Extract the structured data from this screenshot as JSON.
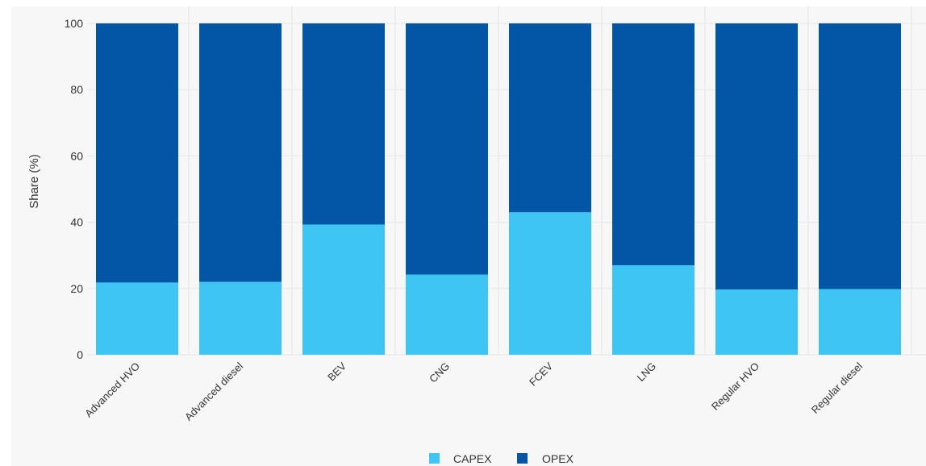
{
  "chart_data": {
    "type": "bar",
    "stacked": true,
    "categories": [
      "Advanced HVO",
      "Advanced diesel",
      "BEV",
      "CNG",
      "FCEV",
      "LNG",
      "Regular HVO",
      "Regular diesel"
    ],
    "series": [
      {
        "name": "CAPEX",
        "color": "#3ec5f3",
        "values": [
          21.8,
          22.0,
          39.3,
          24.2,
          43.0,
          27.0,
          19.7,
          19.8
        ]
      },
      {
        "name": "OPEX",
        "color": "#0356a5",
        "values": [
          78.2,
          78.0,
          60.7,
          75.8,
          57.0,
          73.0,
          80.3,
          80.2
        ]
      }
    ],
    "ylabel": "Share (%)",
    "xlabel": "",
    "ylim": [
      0,
      100
    ],
    "yticks": [
      0,
      20,
      40,
      60,
      80,
      100
    ],
    "grid": true,
    "legend_position": "bottom-center",
    "background": "#f7f7f7",
    "gridline_color": "#e6e6e6"
  }
}
